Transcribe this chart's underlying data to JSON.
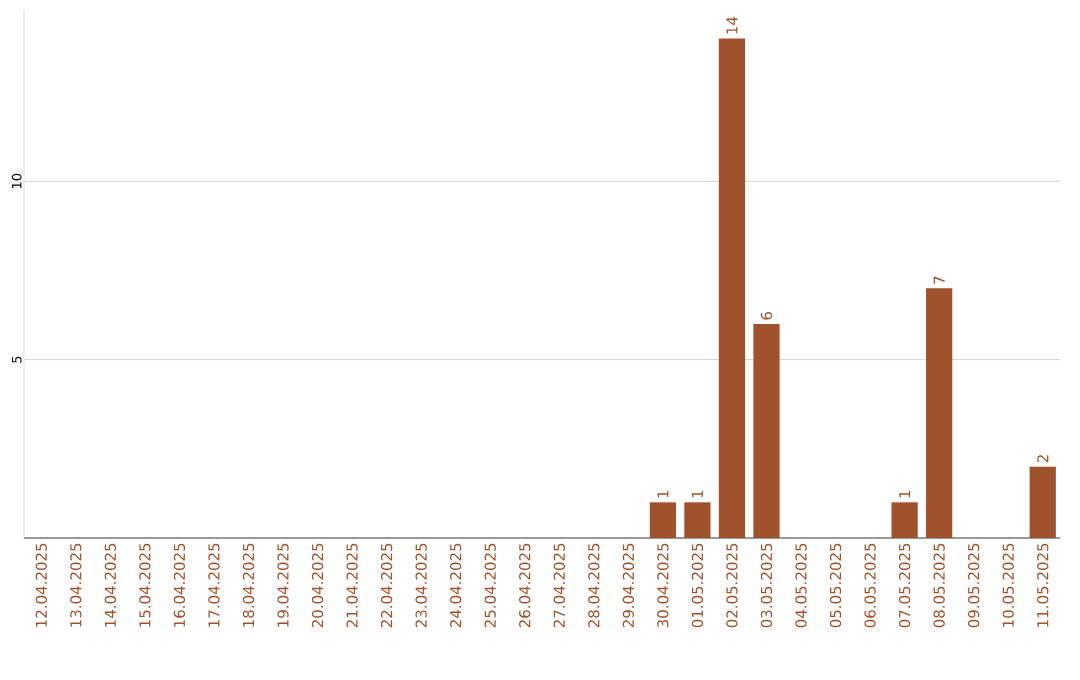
{
  "chart_data": {
    "type": "bar",
    "categories": [
      "12.04.2025",
      "13.04.2025",
      "14.04.2025",
      "15.04.2025",
      "16.04.2025",
      "17.04.2025",
      "18.04.2025",
      "19.04.2025",
      "20.04.2025",
      "21.04.2025",
      "22.04.2025",
      "23.04.2025",
      "24.04.2025",
      "25.04.2025",
      "26.04.2025",
      "27.04.2025",
      "28.04.2025",
      "29.04.2025",
      "30.04.2025",
      "01.05.2025",
      "02.05.2025",
      "03.05.2025",
      "04.05.2025",
      "05.05.2025",
      "06.05.2025",
      "07.05.2025",
      "08.05.2025",
      "09.05.2025",
      "10.05.2025",
      "11.05.2025"
    ],
    "values": [
      0,
      0,
      0,
      0,
      0,
      0,
      0,
      0,
      0,
      0,
      0,
      0,
      0,
      0,
      0,
      0,
      0,
      0,
      1,
      1,
      14,
      6,
      0,
      0,
      0,
      1,
      7,
      0,
      0,
      2
    ],
    "value_labels": [
      null,
      null,
      null,
      null,
      null,
      null,
      null,
      null,
      null,
      null,
      null,
      null,
      null,
      null,
      null,
      null,
      null,
      null,
      "1",
      "1",
      "14",
      "6",
      null,
      null,
      null,
      "1",
      "7",
      null,
      null,
      "2"
    ],
    "color": "#a0522d",
    "ylim": [
      0,
      14.8
    ],
    "yticks": [
      5,
      10
    ],
    "grid": "y"
  }
}
